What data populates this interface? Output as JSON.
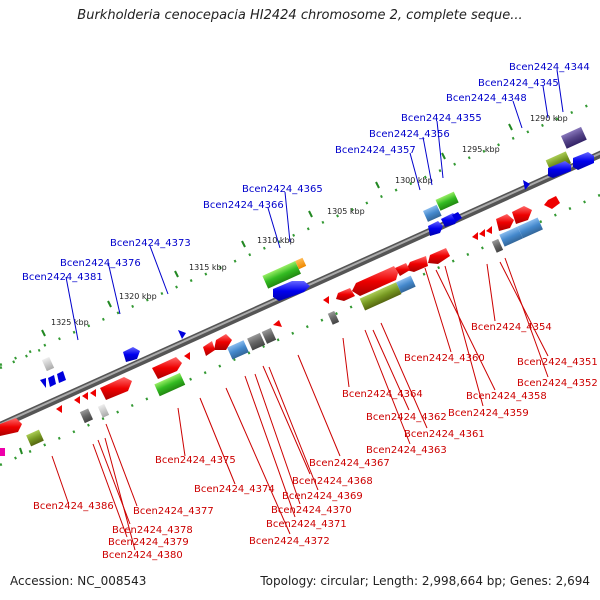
{
  "title": "Burkholderia cenocepacia HI2424 chromosome 2, complete seque...",
  "footer": {
    "accession": "Accession: NC_008543",
    "summary": "Topology: circular; Length: 2,998,664 bp; Genes: 2,694"
  },
  "colors": {
    "forward_label": "#0000cc",
    "reverse_label": "#cc0000",
    "backbone": "#777777",
    "tick": "#228822"
  },
  "scale_labels": [
    "1290 kbp",
    "1295 kbp",
    "1300 kbp",
    "1305 kbp",
    "1310 kbp",
    "1315 kbp",
    "1320 kbp",
    "1325 kbp"
  ],
  "forward_genes": [
    "Bcen2424_4344",
    "Bcen2424_4345",
    "Bcen2424_4348",
    "Bcen2424_4355",
    "Bcen2424_4356",
    "Bcen2424_4357",
    "Bcen2424_4365",
    "Bcen2424_4366",
    "Bcen2424_4373",
    "Bcen2424_4376",
    "Bcen2424_4381"
  ],
  "reverse_genes": [
    "Bcen2424_4354",
    "Bcen2424_4351",
    "Bcen2424_4352",
    "Bcen2424_4360",
    "Bcen2424_4358",
    "Bcen2424_4359",
    "Bcen2424_4364",
    "Bcen2424_4362",
    "Bcen2424_4361",
    "Bcen2424_4363",
    "Bcen2424_4367",
    "Bcen2424_4368",
    "Bcen2424_4369",
    "Bcen2424_4370",
    "Bcen2424_4371",
    "Bcen2424_4372",
    "Bcen2424_4375",
    "Bcen2424_4374",
    "Bcen2424_4377",
    "Bcen2424_4378",
    "Bcen2424_4379",
    "Bcen2424_4380",
    "Bcen2424_4386"
  ]
}
